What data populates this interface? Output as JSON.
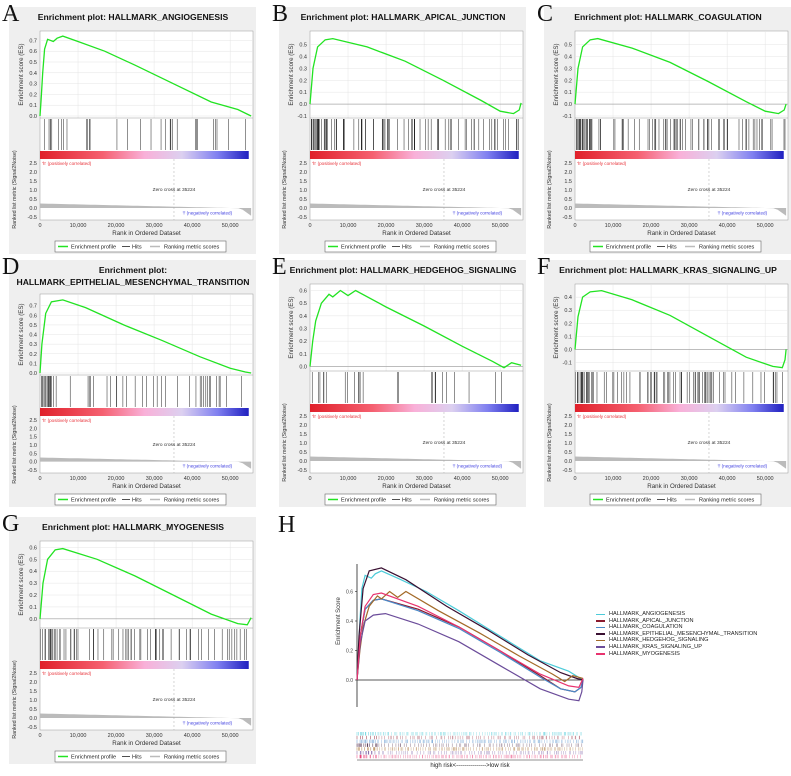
{
  "labels": {
    "es_axis": "Enrichment score (ES)",
    "metric_axis": "Ranked list metric (Signal2Noise)",
    "x_axis": "Rank in Ordered Dataset",
    "pos": "'h' (positively correlated)",
    "neg": "'l' (negatively correlated)",
    "zero_cross": "Zero cross at 35224",
    "legend": [
      "Enrichment profile",
      "Hits",
      "Ranking metric scores"
    ],
    "x_ticks": [
      "0",
      "10,000",
      "20,000",
      "30,000",
      "40,000",
      "50,000"
    ],
    "metric_ticks": [
      "2.5",
      "2.0",
      "1.5",
      "1.0",
      "0.5",
      "0.0",
      "-0.5"
    ]
  },
  "colors": {
    "profile": "#22e322",
    "hit": "#222222",
    "metric": "#bbbbbb",
    "pos": "#e8333a",
    "neg": "#4040e0"
  },
  "chart_data": [
    {
      "letter": "A",
      "type": "line",
      "title": [
        "Enrichment plot: HALLMARK_ANGIOGENESIS"
      ],
      "ylim": [
        0,
        0.75
      ],
      "yticks": [
        "0.0",
        "0.1",
        "0.2",
        "0.3",
        "0.4",
        "0.5",
        "0.6",
        "0.7"
      ],
      "hits_density": 0.35,
      "points": [
        [
          0,
          0
        ],
        [
          300,
          0.15
        ],
        [
          700,
          0.4
        ],
        [
          1200,
          0.62
        ],
        [
          2000,
          0.71
        ],
        [
          3500,
          0.69
        ],
        [
          4500,
          0.72
        ],
        [
          6000,
          0.74
        ],
        [
          10000,
          0.69
        ],
        [
          17000,
          0.6
        ],
        [
          25000,
          0.47
        ],
        [
          35000,
          0.3
        ],
        [
          45000,
          0.13
        ],
        [
          52000,
          0.06
        ],
        [
          55500,
          0
        ]
      ]
    },
    {
      "letter": "B",
      "type": "line",
      "title": [
        "Enrichment plot: HALLMARK_APICAL_JUNCTION"
      ],
      "ylim": [
        -0.1,
        0.58
      ],
      "yticks": [
        "-0.1",
        "0.0",
        "0.1",
        "0.2",
        "0.3",
        "0.4",
        "0.5"
      ],
      "hits_density": 1.0,
      "points": [
        [
          0,
          0
        ],
        [
          800,
          0.3
        ],
        [
          2000,
          0.48
        ],
        [
          4000,
          0.54
        ],
        [
          6000,
          0.55
        ],
        [
          15000,
          0.48
        ],
        [
          25000,
          0.36
        ],
        [
          35000,
          0.2
        ],
        [
          45000,
          0.03
        ],
        [
          50000,
          -0.06
        ],
        [
          53500,
          -0.08
        ],
        [
          55000,
          -0.05
        ],
        [
          55500,
          0.01
        ]
      ]
    },
    {
      "letter": "C",
      "type": "line",
      "title": [
        "Enrichment plot: HALLMARK_COAGULATION"
      ],
      "ylim": [
        -0.1,
        0.58
      ],
      "yticks": [
        "-0.1",
        "0.0",
        "0.1",
        "0.2",
        "0.3",
        "0.4",
        "0.5"
      ],
      "hits_density": 0.8,
      "points": [
        [
          0,
          0
        ],
        [
          800,
          0.3
        ],
        [
          2000,
          0.48
        ],
        [
          4000,
          0.54
        ],
        [
          6000,
          0.55
        ],
        [
          15000,
          0.47
        ],
        [
          25000,
          0.35
        ],
        [
          35000,
          0.19
        ],
        [
          45000,
          0.02
        ],
        [
          50000,
          -0.06
        ],
        [
          53500,
          -0.08
        ],
        [
          55000,
          -0.05
        ],
        [
          55500,
          0.0
        ]
      ]
    },
    {
      "letter": "D",
      "type": "line",
      "title": [
        "Enrichment plot:",
        "HALLMARK_EPITHELIAL_MESENCHYMAL_TRANSITION"
      ],
      "ylim": [
        0,
        0.78
      ],
      "yticks": [
        "0.0",
        "0.1",
        "0.2",
        "0.3",
        "0.4",
        "0.5",
        "0.6",
        "0.7"
      ],
      "hits_density": 0.6,
      "points": [
        [
          0,
          0
        ],
        [
          500,
          0.3
        ],
        [
          1500,
          0.62
        ],
        [
          3000,
          0.74
        ],
        [
          6000,
          0.76
        ],
        [
          12000,
          0.68
        ],
        [
          22000,
          0.5
        ],
        [
          32000,
          0.34
        ],
        [
          42000,
          0.17
        ],
        [
          50000,
          0.05
        ],
        [
          54000,
          0.01
        ],
        [
          55500,
          0
        ]
      ]
    },
    {
      "letter": "E",
      "type": "line",
      "title": [
        "Enrichment plot: HALLMARK_HEDGEHOG_SIGNALING"
      ],
      "ylim": [
        -0.02,
        0.62
      ],
      "yticks": [
        "0.0",
        "0.1",
        "0.2",
        "0.3",
        "0.4",
        "0.5",
        "0.6"
      ],
      "hits_density": 0.3,
      "points": [
        [
          0,
          0
        ],
        [
          700,
          0.2
        ],
        [
          1500,
          0.36
        ],
        [
          3000,
          0.5
        ],
        [
          5000,
          0.57
        ],
        [
          6000,
          0.55
        ],
        [
          8000,
          0.6
        ],
        [
          10000,
          0.56
        ],
        [
          12000,
          0.6
        ],
        [
          20000,
          0.47
        ],
        [
          30000,
          0.32
        ],
        [
          40000,
          0.16
        ],
        [
          48000,
          0.04
        ],
        [
          51000,
          -0.01
        ],
        [
          53000,
          0.03
        ],
        [
          55500,
          0.01
        ]
      ]
    },
    {
      "letter": "F",
      "type": "line",
      "title": [
        "Enrichment plot: HALLMARK_KRAS_SIGNALING_UP"
      ],
      "ylim": [
        -0.15,
        0.47
      ],
      "yticks": [
        "-0.1",
        "0.0",
        "0.1",
        "0.2",
        "0.3",
        "0.4"
      ],
      "hits_density": 1.0,
      "points": [
        [
          0,
          0
        ],
        [
          800,
          0.25
        ],
        [
          2000,
          0.4
        ],
        [
          4000,
          0.44
        ],
        [
          7000,
          0.45
        ],
        [
          15000,
          0.38
        ],
        [
          25000,
          0.26
        ],
        [
          35000,
          0.1
        ],
        [
          45000,
          -0.06
        ],
        [
          52000,
          -0.13
        ],
        [
          54500,
          -0.14
        ],
        [
          55200,
          -0.08
        ],
        [
          55500,
          0.0
        ]
      ]
    },
    {
      "letter": "G",
      "type": "line",
      "title": [
        "Enrichment plot: HALLMARK_MYOGENESIS"
      ],
      "ylim": [
        -0.06,
        0.62
      ],
      "yticks": [
        "0.0",
        "0.1",
        "0.2",
        "0.3",
        "0.4",
        "0.5",
        "0.6"
      ],
      "hits_density": 0.9,
      "points": [
        [
          0,
          0
        ],
        [
          800,
          0.3
        ],
        [
          2000,
          0.5
        ],
        [
          4000,
          0.58
        ],
        [
          6000,
          0.59
        ],
        [
          15000,
          0.5
        ],
        [
          25000,
          0.36
        ],
        [
          35000,
          0.2
        ],
        [
          45000,
          0.04
        ],
        [
          52000,
          -0.04
        ],
        [
          54500,
          -0.05
        ],
        [
          55500,
          0.01
        ]
      ]
    }
  ],
  "h_panel": {
    "letter": "H",
    "ylabel": "Enrichment Score",
    "yticks": [
      "0.0",
      "0.2",
      "0.4",
      "0.6"
    ],
    "xlabel": "high risk<--------------->low risk",
    "series": [
      {
        "name": "HALLMARK_ANGIOGENESIS",
        "color": "#4ccbd9",
        "ref": 0
      },
      {
        "name": "HALLMARK_APICAL_JUNCTION",
        "color": "#8b1a2e",
        "ref": 1
      },
      {
        "name": "HALLMARK_COAGULATION",
        "color": "#4a8ac8",
        "ref": 2
      },
      {
        "name": "HALLMARK_EPITHELIAL_MESENCHYMAL_TRANSITION",
        "color": "#3a1032",
        "ref": 3
      },
      {
        "name": "HALLMARK_HEDGEHOG_SIGNALING",
        "color": "#a36a28",
        "ref": 4
      },
      {
        "name": "HALLMARK_KRAS_SIGNALING_UP",
        "color": "#6b4c9a",
        "ref": 5
      },
      {
        "name": "HALLMARK_MYOGENESIS",
        "color": "#e8336f",
        "ref": 6
      }
    ]
  }
}
